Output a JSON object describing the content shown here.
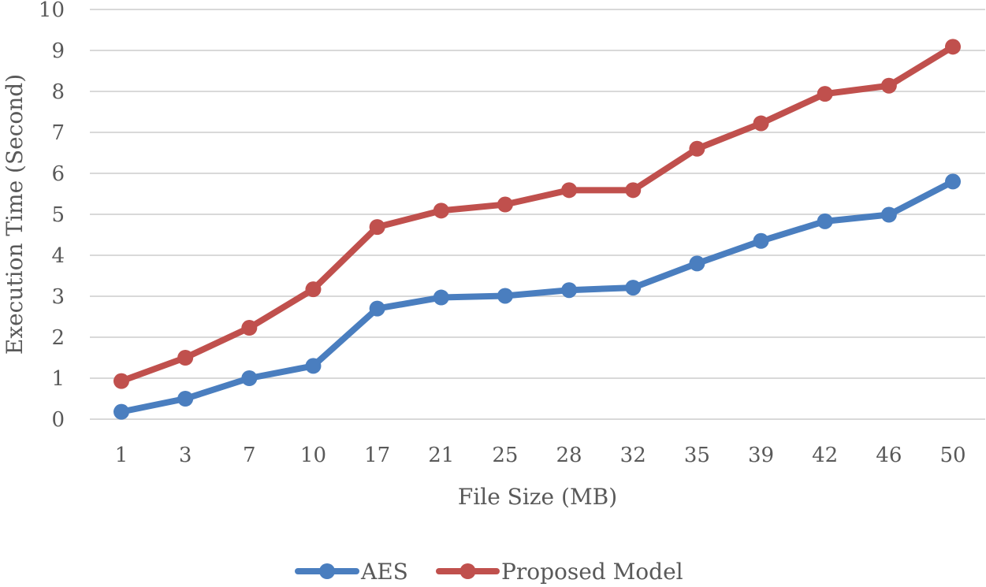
{
  "chart_data": {
    "type": "line",
    "title": "",
    "xlabel": "File Size (MB)",
    "ylabel": "Execution Time (Second)",
    "categories": [
      "1",
      "3",
      "7",
      "10",
      "17",
      "21",
      "25",
      "28",
      "32",
      "35",
      "39",
      "42",
      "46",
      "50"
    ],
    "ylim": [
      0,
      10
    ],
    "yticks": [
      "0",
      "1",
      "2",
      "3",
      "4",
      "5",
      "6",
      "7",
      "8",
      "9",
      "10"
    ],
    "grid": true,
    "legend_position": "bottom",
    "series": [
      {
        "name": "AES",
        "color": "#4a7ebf",
        "values": [
          0.18,
          0.5,
          1.0,
          1.3,
          2.7,
          2.97,
          3.01,
          3.15,
          3.21,
          3.8,
          4.35,
          4.83,
          4.99,
          5.8
        ]
      },
      {
        "name": "Proposed Model",
        "color": "#c0504d",
        "values": [
          0.93,
          1.5,
          2.23,
          3.17,
          4.69,
          5.09,
          5.24,
          5.59,
          5.59,
          6.6,
          7.22,
          7.94,
          8.14,
          9.09
        ]
      }
    ]
  }
}
